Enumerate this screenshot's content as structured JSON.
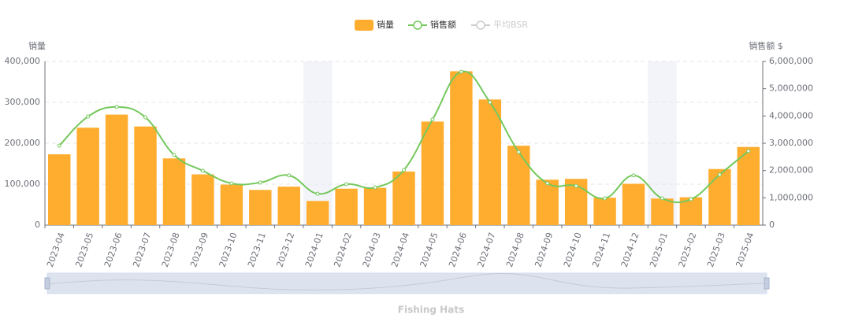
{
  "chart_data": {
    "type": "bar",
    "title": "Fishing Hats",
    "y_label": "销量",
    "y2_label": "销售额 $",
    "categories": [
      "2023-04",
      "2023-05",
      "2023-06",
      "2023-07",
      "2023-08",
      "2023-09",
      "2023-10",
      "2023-11",
      "2023-12",
      "2024-01",
      "2024-02",
      "2024-03",
      "2024-04",
      "2024-05",
      "2024-06",
      "2024-07",
      "2024-08",
      "2024-09",
      "2024-10",
      "2024-11",
      "2024-12",
      "2025-01",
      "2025-02",
      "2025-03",
      "2025-04"
    ],
    "series": [
      {
        "name": "销量",
        "type": "bar",
        "color": "#ffad2f",
        "values": [
          173000,
          238000,
          270000,
          241000,
          163000,
          124000,
          99000,
          86000,
          94000,
          59000,
          89000,
          91000,
          131000,
          253000,
          376000,
          307000,
          194000,
          111000,
          113000,
          67000,
          101000,
          65000,
          68000,
          137000,
          191000
        ]
      },
      {
        "name": "销售额",
        "type": "line",
        "axis": "y2",
        "color": "#74c85c",
        "values": [
          2910000,
          3980000,
          4330000,
          3950000,
          2570000,
          1990000,
          1530000,
          1560000,
          1820000,
          1150000,
          1500000,
          1380000,
          2020000,
          3870000,
          5620000,
          4500000,
          2680000,
          1530000,
          1440000,
          980000,
          1820000,
          980000,
          950000,
          1850000,
          2710000
        ]
      }
    ],
    "legend_disabled": [
      "平均BSR"
    ],
    "highlight_bands": [
      "2024-01",
      "2025-01"
    ],
    "ylim": [
      0,
      400000
    ],
    "yticks": [
      0,
      {
        "value": 100000,
        "label": "100,000"
      },
      {
        "value": 200000,
        "label": "200,000"
      },
      {
        "value": 300000,
        "label": "300,000"
      },
      {
        "value": 400000,
        "label": "400,000"
      }
    ],
    "y2lim": [
      0,
      6000000
    ],
    "y2ticks": [
      0,
      {
        "value": 1000000,
        "label": "1,000,000"
      },
      {
        "value": 2000000,
        "label": "2,000,000"
      },
      {
        "value": 3000000,
        "label": "3,000,000"
      },
      {
        "value": 4000000,
        "label": "4,000,000"
      },
      {
        "value": 5000000,
        "label": "5,000,000"
      },
      {
        "value": 6000000,
        "label": "6,000,000"
      }
    ],
    "grid": true,
    "legend": "top"
  }
}
